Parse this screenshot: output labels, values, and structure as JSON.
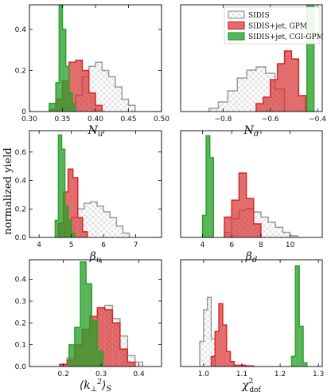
{
  "figure": {
    "ylabel": "normalized yield",
    "colors": {
      "SIDIS": "#a9a9a9",
      "GPM": "#d62728",
      "CGI": "#2ca02c"
    },
    "legend": [
      "SIDIS",
      "SIDIS+jet, GPM",
      "SIDIS+jet, CGI-GPM"
    ]
  },
  "chart_data": [
    {
      "type": "histogram",
      "id": "Nu",
      "xlabel": "N_u",
      "xlabel_sub": "u",
      "xlim": [
        0.3,
        0.5
      ],
      "ylim": [
        0,
        0.52
      ],
      "xticks": [
        0.3,
        0.35,
        0.4,
        0.45,
        0.5
      ],
      "xtick_labels": [
        "0.30",
        "0.35",
        "0.40",
        "0.45",
        "0.50"
      ],
      "yticks": [
        0,
        0.2,
        0.4
      ],
      "ytick_labels": [
        "0",
        "0.2",
        "0.4"
      ],
      "series": [
        {
          "name": "SIDIS",
          "edges": [
            0.35,
            0.36,
            0.37,
            0.38,
            0.39,
            0.4,
            0.41,
            0.42,
            0.43,
            0.44,
            0.45,
            0.46
          ],
          "values": [
            0.02,
            0.04,
            0.08,
            0.17,
            0.22,
            0.24,
            0.2,
            0.17,
            0.12,
            0.06,
            0.03
          ]
        },
        {
          "name": "SIDIS+jet, GPM",
          "edges": [
            0.33,
            0.34,
            0.35,
            0.36,
            0.37,
            0.38,
            0.39,
            0.4,
            0.41
          ],
          "values": [
            0.01,
            0.06,
            0.15,
            0.24,
            0.25,
            0.2,
            0.09,
            0.03
          ]
        },
        {
          "name": "SIDIS+jet, CGI-GPM",
          "edges": [
            0.33,
            0.34,
            0.345,
            0.35,
            0.355,
            0.36,
            0.365,
            0.37
          ],
          "values": [
            0.04,
            0.14,
            0.52,
            0.4,
            0.22,
            0.09,
            0.03
          ]
        }
      ]
    },
    {
      "type": "histogram",
      "id": "Nd",
      "xlabel": "N_d",
      "xlabel_sub": "d",
      "xlim": [
        -0.98,
        -0.38
      ],
      "ylim": [
        0,
        0.67
      ],
      "xticks": [
        -0.8,
        -0.6,
        -0.4
      ],
      "xtick_labels": [
        "−0.8",
        "−0.6",
        "−0.4"
      ],
      "yticks": [],
      "ytick_labels": [],
      "series": [
        {
          "name": "SIDIS",
          "edges": [
            -0.86,
            -0.82,
            -0.78,
            -0.74,
            -0.7,
            -0.66,
            -0.62,
            -0.58,
            -0.54
          ],
          "values": [
            0.02,
            0.06,
            0.13,
            0.21,
            0.26,
            0.28,
            0.24,
            0.14
          ]
        },
        {
          "name": "SIDIS+jet, GPM",
          "edges": [
            -0.66,
            -0.63,
            -0.6,
            -0.57,
            -0.54,
            -0.51,
            -0.48,
            -0.45
          ],
          "values": [
            0.05,
            0.09,
            0.2,
            0.3,
            0.38,
            0.33,
            0.1
          ]
        },
        {
          "name": "SIDIS+jet, CGI-GPM",
          "edges": [
            -0.445,
            -0.415
          ],
          "values": [
            0.67
          ]
        }
      ]
    },
    {
      "type": "histogram",
      "id": "betau",
      "xlabel": "β_u",
      "xlabel_sub": "u",
      "xlim": [
        3.7,
        7.8
      ],
      "ylim": [
        0,
        0.75
      ],
      "xticks": [
        4,
        5,
        6,
        7
      ],
      "xtick_labels": [
        "4",
        "5",
        "6",
        "7"
      ],
      "yticks": [
        0,
        0.2,
        0.4,
        0.6
      ],
      "ytick_labels": [
        "0.0",
        "0.2",
        "0.4",
        "0.6"
      ],
      "series": [
        {
          "name": "SIDIS",
          "edges": [
            4.6,
            4.8,
            5.0,
            5.2,
            5.4,
            5.6,
            5.8,
            6.0,
            6.2,
            6.4,
            6.6,
            6.8
          ],
          "values": [
            0.03,
            0.08,
            0.14,
            0.2,
            0.24,
            0.25,
            0.22,
            0.18,
            0.14,
            0.08,
            0.03
          ]
        },
        {
          "name": "SIDIS+jet, GPM",
          "edges": [
            4.6,
            4.75,
            4.9,
            5.05,
            5.2,
            5.35,
            5.5
          ],
          "values": [
            0.1,
            0.32,
            0.48,
            0.42,
            0.14,
            0.04
          ]
        },
        {
          "name": "SIDIS+jet, CGI-GPM",
          "edges": [
            4.5,
            4.6,
            4.7,
            4.8,
            4.9,
            5.0,
            5.1
          ],
          "values": [
            0.12,
            0.72,
            0.62,
            0.22,
            0.12,
            0.03
          ]
        }
      ]
    },
    {
      "type": "histogram",
      "id": "betad",
      "xlabel": "β_d",
      "xlabel_sub": "d",
      "xlim": [
        2.5,
        12.2
      ],
      "ylim": [
        0,
        0.63
      ],
      "xticks": [
        4,
        6,
        8,
        10
      ],
      "xtick_labels": [
        "4",
        "6",
        "8",
        "10"
      ],
      "yticks": [],
      "ytick_labels": [],
      "series": [
        {
          "name": "SIDIS",
          "edges": [
            5.5,
            6.0,
            6.5,
            7.0,
            7.5,
            8.0,
            8.5,
            9.0,
            9.5,
            10.0,
            10.5
          ],
          "values": [
            0.03,
            0.11,
            0.16,
            0.17,
            0.15,
            0.12,
            0.09,
            0.06,
            0.03,
            0.01
          ]
        },
        {
          "name": "SIDIS+jet, GPM",
          "edges": [
            5.5,
            6.0,
            6.5,
            7.0,
            7.5,
            8.0
          ],
          "values": [
            0.12,
            0.22,
            0.38,
            0.23,
            0.08
          ]
        },
        {
          "name": "SIDIS+jet, CGI-GPM",
          "edges": [
            4.0,
            4.25,
            4.5,
            4.75
          ],
          "values": [
            0.13,
            0.6,
            0.47
          ]
        }
      ]
    },
    {
      "type": "histogram",
      "id": "kperp",
      "xlabel": "⟨k⊥²⟩S",
      "xlim": [
        0.11,
        0.46
      ],
      "ylim": [
        0,
        0.49
      ],
      "xticks": [
        0.2,
        0.3,
        0.4
      ],
      "xtick_labels": [
        "0.2",
        "0.3",
        "0.4"
      ],
      "yticks": [
        0,
        0.1,
        0.2,
        0.3,
        0.4
      ],
      "ytick_labels": [
        "0.0",
        "0.1",
        "0.2",
        "0.3",
        "0.4"
      ],
      "series": [
        {
          "name": "SIDIS",
          "edges": [
            0.19,
            0.21,
            0.23,
            0.25,
            0.27,
            0.29,
            0.31,
            0.33,
            0.35,
            0.37,
            0.39,
            0.41
          ],
          "values": [
            0.01,
            0.04,
            0.09,
            0.14,
            0.2,
            0.27,
            0.28,
            0.22,
            0.14,
            0.05,
            0.02
          ]
        },
        {
          "name": "SIDIS+jet, GPM",
          "edges": [
            0.19,
            0.21,
            0.23,
            0.25,
            0.27,
            0.29,
            0.31,
            0.33,
            0.35,
            0.37,
            0.39
          ],
          "values": [
            0.01,
            0.03,
            0.1,
            0.17,
            0.23,
            0.27,
            0.26,
            0.2,
            0.08,
            0.02
          ]
        },
        {
          "name": "SIDIS+jet, CGI-GPM",
          "edges": [
            0.215,
            0.23,
            0.245,
            0.26,
            0.275,
            0.29,
            0.305
          ],
          "values": [
            0.1,
            0.18,
            0.48,
            0.38,
            0.21,
            0.07
          ]
        }
      ]
    },
    {
      "type": "histogram",
      "id": "chi2",
      "xlabel": "χ²dof",
      "xlim": [
        0.94,
        1.31
      ],
      "ylim": [
        0,
        0.85
      ],
      "xticks": [
        1.0,
        1.1,
        1.2,
        1.3
      ],
      "xtick_labels": [
        "1.0",
        "1.1",
        "1.2",
        "1.3"
      ],
      "yticks": [],
      "ytick_labels": [],
      "series": [
        {
          "name": "SIDIS",
          "edges": [
            0.99,
            1.0,
            1.01,
            1.02,
            1.03
          ],
          "values": [
            0.2,
            0.45,
            0.55,
            0.22
          ]
        },
        {
          "name": "SIDIS+jet, GPM",
          "edges": [
            1.02,
            1.03,
            1.04,
            1.05,
            1.06,
            1.07,
            1.08,
            1.09,
            1.1,
            1.11,
            1.12,
            1.13
          ],
          "values": [
            0.08,
            0.28,
            0.5,
            0.33,
            0.12,
            0.04,
            0.01,
            0.01,
            0.01,
            0.005,
            0.005
          ]
        },
        {
          "name": "SIDIS+jet, CGI-GPM",
          "edges": [
            1.23,
            1.24,
            1.25,
            1.26,
            1.27
          ],
          "values": [
            0.08,
            0.8,
            0.32,
            0.03
          ]
        }
      ]
    }
  ]
}
